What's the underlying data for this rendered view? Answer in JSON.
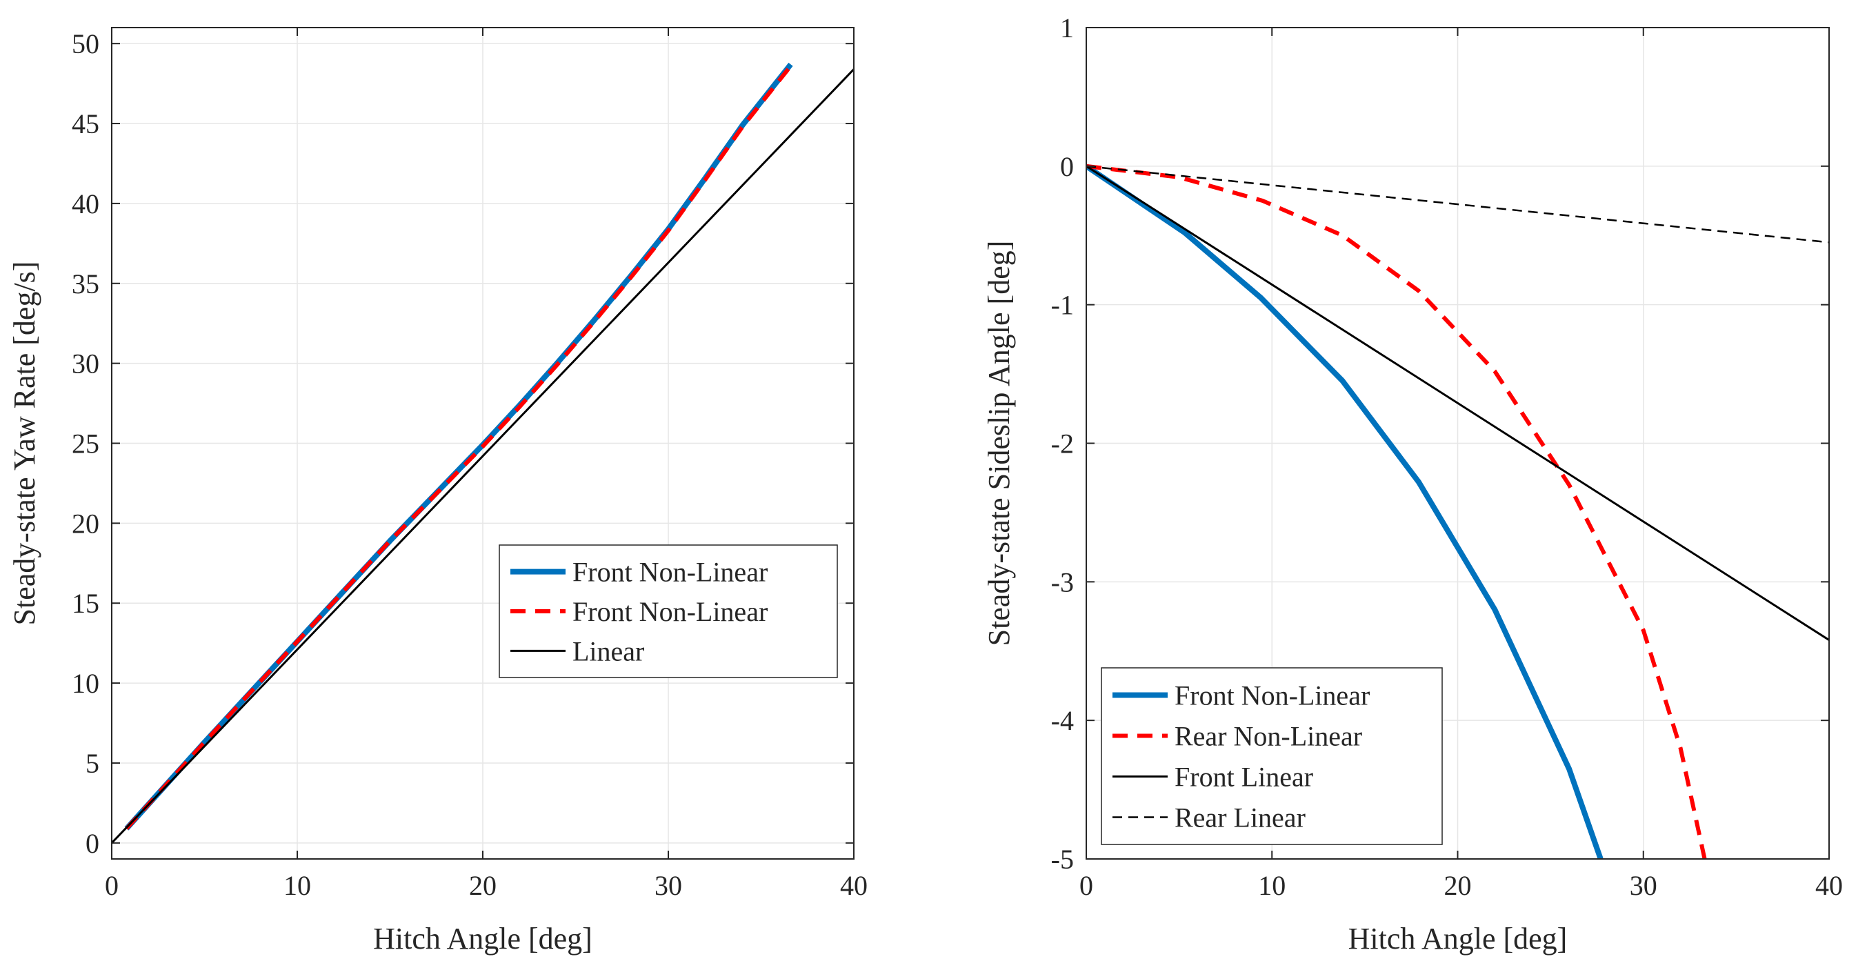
{
  "chart_data": [
    {
      "type": "line",
      "xlabel": "Hitch Angle [deg]",
      "ylabel": "Steady-state Yaw Rate [deg/s]",
      "xlim": [
        0,
        40
      ],
      "ylim": [
        -1,
        51
      ],
      "xticks": [
        0,
        10,
        20,
        30,
        40
      ],
      "yticks": [
        0,
        5,
        10,
        15,
        20,
        25,
        30,
        35,
        40,
        45,
        50
      ],
      "grid": true,
      "legend_position": "center-right",
      "series": [
        {
          "name": "Front Non-Linear",
          "color": "#0072BD",
          "style": "solid-thick",
          "x": [
            0.8,
            5,
            10,
            15,
            20,
            22,
            24,
            26,
            28,
            30,
            32,
            34,
            36.6
          ],
          "y": [
            0.9,
            6.3,
            12.6,
            18.9,
            24.9,
            27.4,
            30.0,
            32.7,
            35.5,
            38.4,
            41.6,
            44.9,
            48.7
          ]
        },
        {
          "name": "Front Non-Linear",
          "color": "#FF0000",
          "style": "dashed",
          "x": [
            0.8,
            5,
            10,
            15,
            20,
            22,
            24,
            26,
            28,
            30,
            32,
            34,
            36.6
          ],
          "y": [
            0.9,
            6.3,
            12.6,
            18.9,
            24.8,
            27.3,
            29.9,
            32.6,
            35.4,
            38.3,
            41.5,
            44.8,
            48.6
          ]
        },
        {
          "name": "Linear",
          "color": "#000000",
          "style": "solid-thin",
          "x": [
            0,
            40
          ],
          "y": [
            0,
            48.4
          ]
        }
      ]
    },
    {
      "type": "line",
      "xlabel": "Hitch Angle [deg]",
      "ylabel": "Steady-state Sideslip Angle [deg]",
      "xlim": [
        0,
        40
      ],
      "ylim": [
        -5,
        1
      ],
      "xticks": [
        0,
        10,
        20,
        30,
        40
      ],
      "yticks": [
        1,
        0,
        -1,
        -2,
        -3,
        -4,
        -5
      ],
      "grid": true,
      "legend_position": "bottom-left",
      "series": [
        {
          "name": "Front Non-Linear",
          "color": "#0072BD",
          "style": "solid-thick",
          "x": [
            0,
            5.3,
            9.4,
            13.8,
            17.9,
            22,
            26,
            27.7
          ],
          "y": [
            0,
            -0.48,
            -0.95,
            -1.55,
            -2.28,
            -3.2,
            -4.35,
            -5.0
          ]
        },
        {
          "name": "Rear Non-Linear",
          "color": "#FF0000",
          "style": "dashed",
          "x": [
            0,
            5,
            9.5,
            13.8,
            17.9,
            22,
            26,
            30,
            32,
            33.3
          ],
          "y": [
            0,
            -0.08,
            -0.25,
            -0.5,
            -0.9,
            -1.48,
            -2.3,
            -3.35,
            -4.2,
            -5.0
          ]
        },
        {
          "name": "Front Linear",
          "color": "#000000",
          "style": "solid-thin",
          "x": [
            0,
            40
          ],
          "y": [
            0,
            -3.42
          ]
        },
        {
          "name": "Rear Linear",
          "color": "#000000",
          "style": "dashed-thin",
          "x": [
            0,
            40
          ],
          "y": [
            0,
            -0.55
          ]
        }
      ]
    }
  ]
}
